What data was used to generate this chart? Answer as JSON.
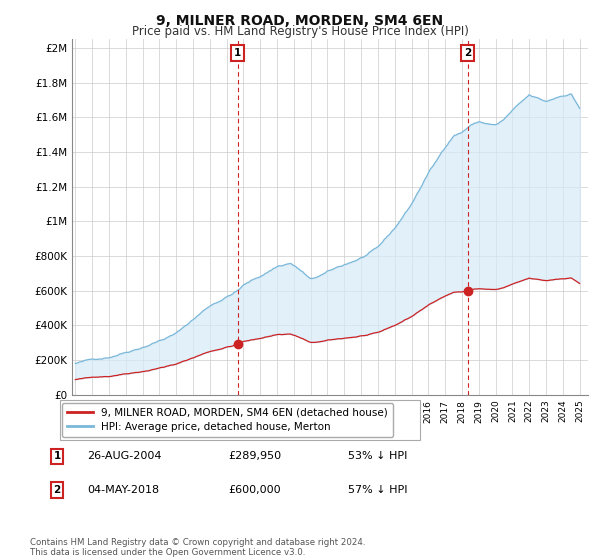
{
  "title": "9, MILNER ROAD, MORDEN, SM4 6EN",
  "subtitle": "Price paid vs. HM Land Registry's House Price Index (HPI)",
  "title_fontsize": 10,
  "subtitle_fontsize": 8.5,
  "ylabel_ticks": [
    "£0",
    "£200K",
    "£400K",
    "£600K",
    "£800K",
    "£1M",
    "£1.2M",
    "£1.4M",
    "£1.6M",
    "£1.8M",
    "£2M"
  ],
  "ytick_values": [
    0,
    200000,
    400000,
    600000,
    800000,
    1000000,
    1200000,
    1400000,
    1600000,
    1800000,
    2000000
  ],
  "ylim": [
    0,
    2050000
  ],
  "xlim_start": 1994.8,
  "xlim_end": 2025.5,
  "hpi_color": "#7ab8d9",
  "hpi_fill_color": "#d6eaf8",
  "price_color": "#cc2222",
  "marker1_x": 2004.65,
  "marker1_y": 289950,
  "marker2_x": 2018.34,
  "marker2_y": 600000,
  "marker1_label": "1",
  "marker2_label": "2",
  "marker1_date": "26-AUG-2004",
  "marker1_price": "£289,950",
  "marker1_hpi": "53% ↓ HPI",
  "marker2_date": "04-MAY-2018",
  "marker2_price": "£600,000",
  "marker2_hpi": "57% ↓ HPI",
  "legend_label1": "9, MILNER ROAD, MORDEN, SM4 6EN (detached house)",
  "legend_label2": "HPI: Average price, detached house, Merton",
  "footer": "Contains HM Land Registry data © Crown copyright and database right 2024.\nThis data is licensed under the Open Government Licence v3.0.",
  "background_color": "#ffffff",
  "grid_color": "#cccccc"
}
